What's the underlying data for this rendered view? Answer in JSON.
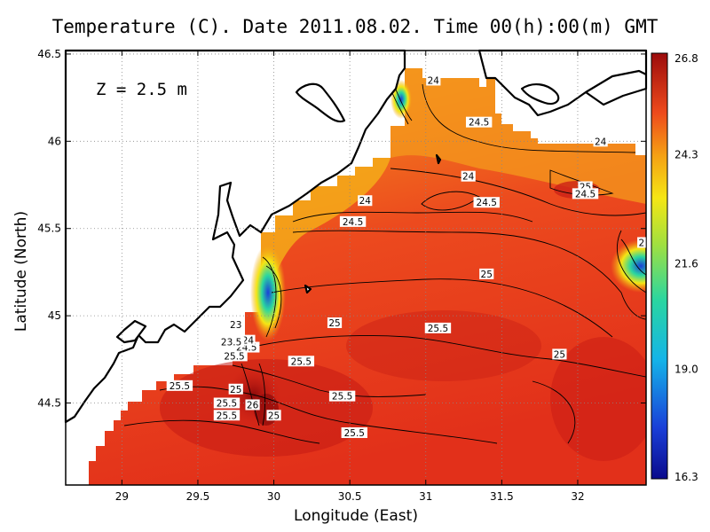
{
  "title": "Temperature (C). Date 2011.08.02. Time 00(h):00(m) GMT",
  "depth_label": "Z = 2.5 m",
  "xlabel": "Longitude (East)",
  "ylabel": "Latitude (North)",
  "colors": {
    "warm": "#e8321e",
    "warmest": "#a01010",
    "orange": "#f27a1e",
    "yellow": "#f5c814",
    "cool": "#1a3fd8"
  },
  "map_data": {
    "type": "heatmap",
    "x_ticks": [
      "29",
      "29.5",
      "30",
      "30.5",
      "31",
      "31.5",
      "32"
    ],
    "y_ticks": [
      "44.5",
      "45",
      "45.5",
      "46",
      "46.5"
    ],
    "xlim": [
      28.63,
      32.45
    ],
    "ylim": [
      44.03,
      46.52
    ],
    "grid": true,
    "colorbar": {
      "ticks": [
        "26.8",
        "24.3",
        "21.6",
        "19.0",
        "16.3"
      ],
      "min": 16.3,
      "max": 26.8
    },
    "contour_labels": [
      {
        "text": "24",
        "lon": 31.05,
        "lat": 46.35
      },
      {
        "text": "24.5",
        "lon": 31.35,
        "lat": 46.11
      },
      {
        "text": "24",
        "lon": 32.15,
        "lat": 46.0
      },
      {
        "text": "24",
        "lon": 30.6,
        "lat": 45.66
      },
      {
        "text": "24",
        "lon": 31.28,
        "lat": 45.8
      },
      {
        "text": "24.5",
        "lon": 31.4,
        "lat": 45.65
      },
      {
        "text": "25",
        "lon": 32.05,
        "lat": 45.74
      },
      {
        "text": "24.5",
        "lon": 32.05,
        "lat": 45.7
      },
      {
        "text": "24.5",
        "lon": 30.52,
        "lat": 45.54
      },
      {
        "text": "25",
        "lon": 31.4,
        "lat": 45.24
      },
      {
        "text": "25",
        "lon": 30.4,
        "lat": 44.96
      },
      {
        "text": "25.5",
        "lon": 31.08,
        "lat": 44.93
      },
      {
        "text": "25",
        "lon": 31.88,
        "lat": 44.78
      },
      {
        "text": "25.5",
        "lon": 30.18,
        "lat": 44.74
      },
      {
        "text": "25.5",
        "lon": 29.38,
        "lat": 44.6
      },
      {
        "text": "25",
        "lon": 29.75,
        "lat": 44.58
      },
      {
        "text": "25.5",
        "lon": 30.45,
        "lat": 44.54
      },
      {
        "text": "25.5",
        "lon": 29.69,
        "lat": 44.5
      },
      {
        "text": "26",
        "lon": 29.86,
        "lat": 44.49
      },
      {
        "text": "25.5",
        "lon": 29.69,
        "lat": 44.43
      },
      {
        "text": "25",
        "lon": 30,
        "lat": 44.43
      },
      {
        "text": "25.5",
        "lon": 30.53,
        "lat": 44.33
      },
      {
        "text": "24.5",
        "lon": 29.82,
        "lat": 44.82
      },
      {
        "text": "25.5",
        "lon": 29.74,
        "lat": 44.77
      },
      {
        "text": "23",
        "lon": 29.75,
        "lat": 44.95
      },
      {
        "text": "24",
        "lon": 29.83,
        "lat": 44.86
      },
      {
        "text": "23.5",
        "lon": 29.72,
        "lat": 44.85
      },
      {
        "text": "2",
        "lon": 32.42,
        "lat": 45.42
      }
    ]
  }
}
